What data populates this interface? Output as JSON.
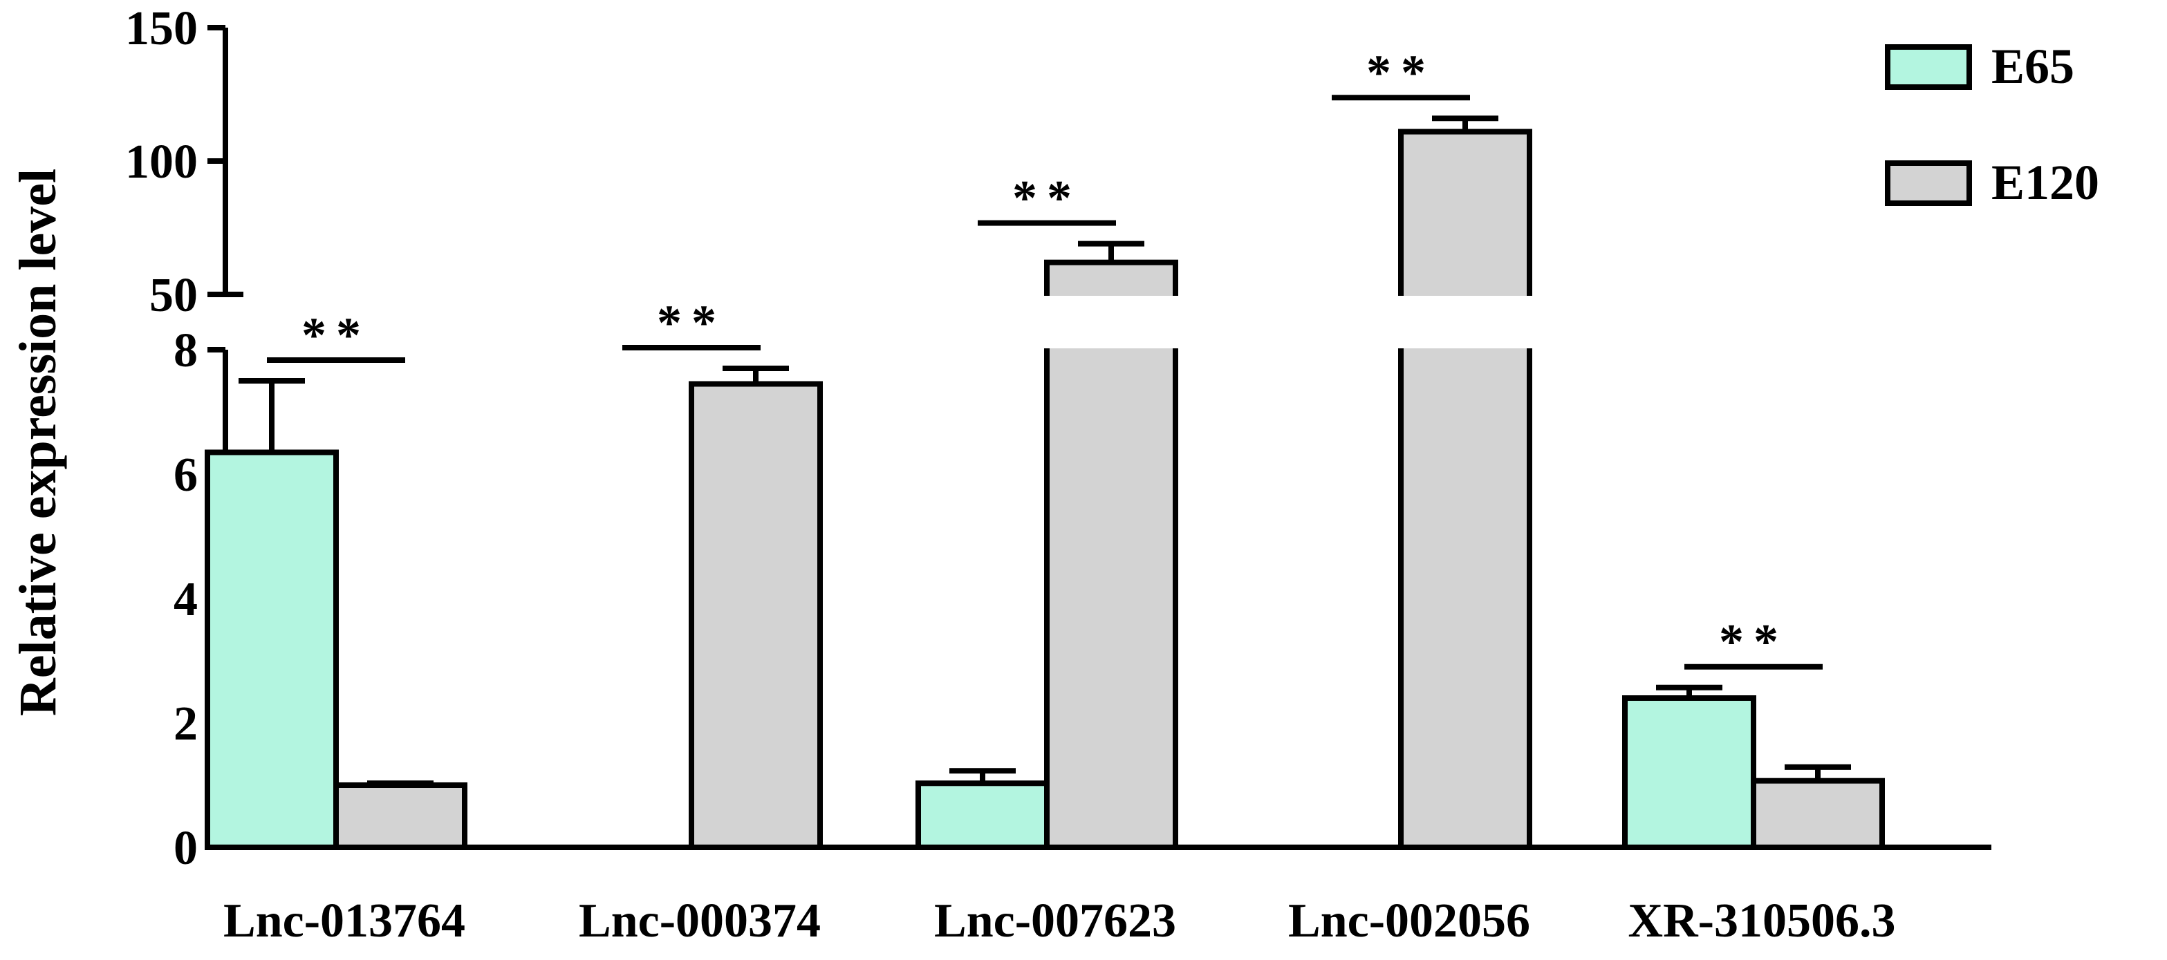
{
  "chart_data": {
    "type": "bar",
    "ylabel": "Relative expression level",
    "categories": [
      "Lnc-013764",
      "Lnc-000374",
      "Lnc-007623",
      "Lnc-002056",
      "XR-310506.3"
    ],
    "axis_break": {
      "lower_range": [
        0,
        8
      ],
      "upper_range": [
        50,
        150
      ]
    },
    "lower_ticks": [
      0,
      2,
      4,
      6,
      8
    ],
    "upper_ticks": [
      50,
      100,
      150
    ],
    "legend_position": "top-right",
    "series": [
      {
        "name": "E65",
        "color": "#b3f5e0",
        "values": [
          6.35,
          0,
          1.03,
          0,
          2.4
        ],
        "errors": [
          1.15,
          0,
          0.2,
          0,
          0.17
        ]
      },
      {
        "name": "E120",
        "color": "#d3d3d3",
        "values": [
          1.0,
          7.45,
          62,
          111,
          1.07
        ],
        "errors": [
          0.03,
          0.25,
          7,
          5,
          0.22
        ]
      }
    ],
    "significance": [
      {
        "category": 0,
        "label": "**"
      },
      {
        "category": 1,
        "label": "**"
      },
      {
        "category": 2,
        "label": "**"
      },
      {
        "category": 3,
        "label": "**"
      },
      {
        "category": 4,
        "label": "**"
      }
    ]
  }
}
